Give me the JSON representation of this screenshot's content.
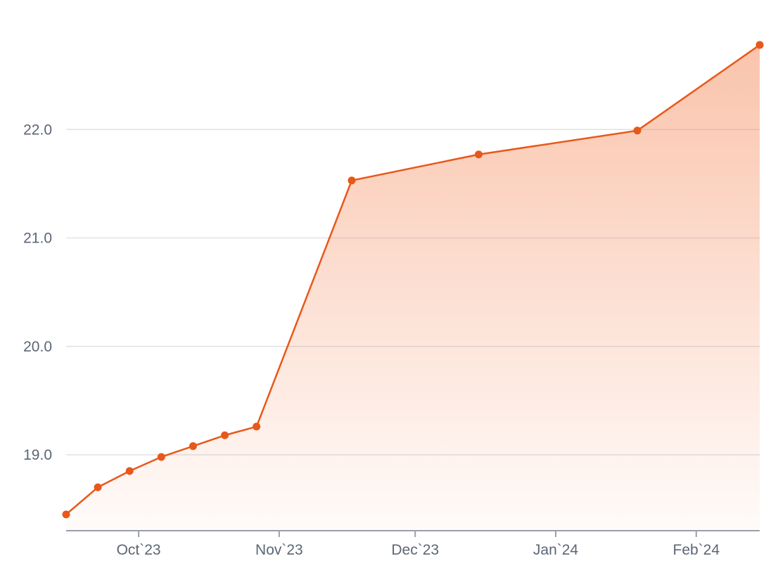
{
  "chart_data": {
    "type": "area",
    "title": "",
    "xlabel": "",
    "ylabel": "",
    "grid": true,
    "legend": "none",
    "ylim": [
      18.3,
      23.0
    ],
    "y_ticks": [
      "19.0",
      "20.0",
      "21.0",
      "22.0"
    ],
    "x_ticks": [
      "Oct`23",
      "Nov`23",
      "Dec`23",
      "Jan`24",
      "Feb`24"
    ],
    "x_tick_dates": [
      "2023-10-01",
      "2023-11-01",
      "2023-12-01",
      "2024-01-01",
      "2024-02-01"
    ],
    "x_range": [
      "2023-09-15",
      "2024-02-15"
    ],
    "colors": {
      "line": "#e8581a",
      "fill": "#f47b45",
      "grid": "#dfe2e8",
      "axis": "#9aa0aa",
      "label": "#5c6675"
    },
    "series": [
      {
        "x": [
          "2023-09-15",
          "2023-09-22",
          "2023-09-29",
          "2023-10-06",
          "2023-10-13",
          "2023-10-20",
          "2023-10-27",
          "2023-11-17",
          "2023-12-15",
          "2024-01-19",
          "2024-02-15"
        ],
        "y": [
          18.45,
          18.7,
          18.85,
          18.98,
          19.08,
          19.18,
          19.26,
          21.53,
          21.77,
          21.99,
          22.78
        ]
      }
    ]
  }
}
